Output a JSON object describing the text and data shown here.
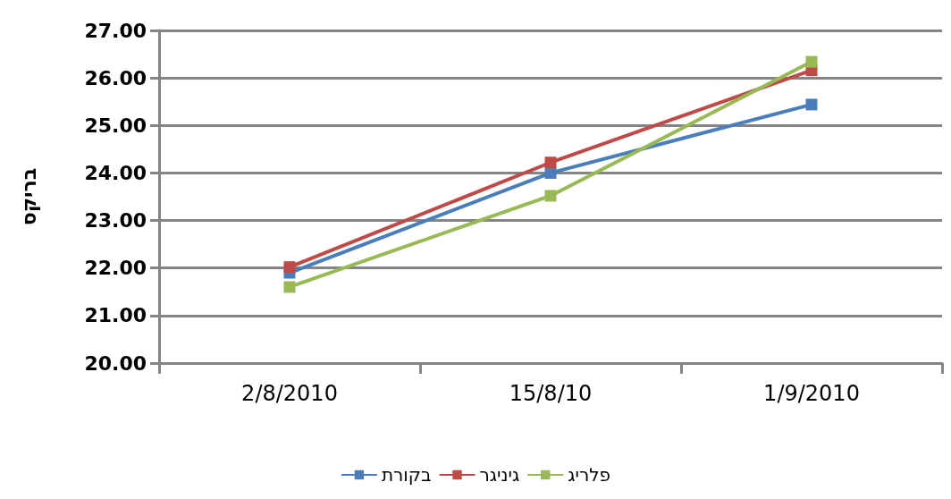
{
  "chart_data": {
    "type": "line",
    "ylabel": "בריקס",
    "categories": [
      "2/8/2010",
      "15/8/10",
      "1/9/2010"
    ],
    "series": [
      {
        "name": "בקורת",
        "color": "#4a7ebb",
        "values": [
          21.9,
          24.0,
          25.44
        ]
      },
      {
        "name": "גיניגר",
        "color": "#be4b48",
        "values": [
          22.02,
          24.22,
          26.16
        ]
      },
      {
        "name": "פלריג",
        "color": "#98b954",
        "values": [
          21.6,
          23.52,
          26.34
        ]
      }
    ],
    "ylim": [
      20,
      27
    ],
    "yticks": [
      {
        "value": 20,
        "label": "20.00"
      },
      {
        "value": 21,
        "label": "21.00"
      },
      {
        "value": 22,
        "label": "22.00"
      },
      {
        "value": 23,
        "label": "23.00"
      },
      {
        "value": 24,
        "label": "24.00"
      },
      {
        "value": 25,
        "label": "25.00"
      },
      {
        "value": 26,
        "label": "26.00"
      },
      {
        "value": 27,
        "label": "27.00"
      }
    ],
    "grid": "y",
    "legend": "bottom",
    "marker": "square",
    "line_style": "solid"
  }
}
